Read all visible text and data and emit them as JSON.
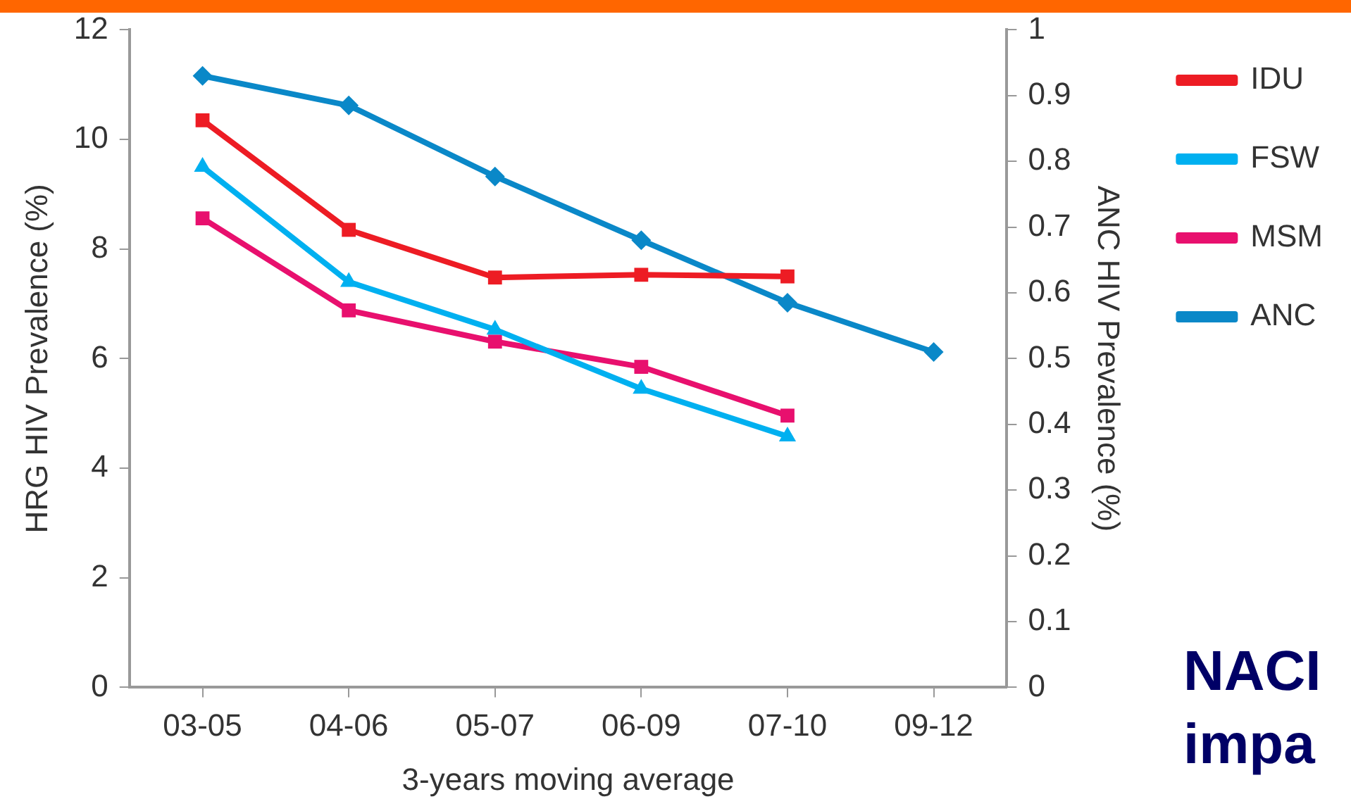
{
  "chart_data": {
    "type": "line",
    "xlabel": "3-years moving average",
    "ylabel": "HRG HIV Prevalence (%)",
    "y2label": "ANC HIV Prevalence (%)",
    "categories": [
      "03-05",
      "04-06",
      "05-07",
      "06-09",
      "07-10",
      "09-12"
    ],
    "series": [
      {
        "name": "IDU",
        "color": "#ed1c24",
        "marker": "square",
        "values": [
          10.35,
          8.35,
          7.48,
          7.53,
          7.5,
          null
        ]
      },
      {
        "name": "FSW",
        "color": "#00b0f0",
        "marker": "triangle",
        "values": [
          9.5,
          7.4,
          6.53,
          5.45,
          4.58,
          null
        ]
      },
      {
        "name": "MSM",
        "color": "#e8106e",
        "marker": "square",
        "values": [
          8.56,
          6.88,
          6.31,
          5.85,
          4.96,
          null
        ]
      },
      {
        "name": "ANC",
        "color": "#0a88c8",
        "marker": "diamond",
        "axis": "y2",
        "values": [
          0.93,
          0.885,
          0.777,
          0.68,
          0.585,
          0.51
        ]
      }
    ],
    "ylim": [
      0,
      12
    ],
    "yticks": [
      0,
      2,
      4,
      6,
      8,
      10,
      12
    ],
    "y2lim": [
      0,
      1
    ],
    "y2ticks": [
      0,
      0.1,
      0.2,
      0.3,
      0.4,
      0.5,
      0.6,
      0.7,
      0.8,
      0.9,
      1
    ],
    "grid": false,
    "legend": "right",
    "line_style": "solid",
    "annotations": [
      "NACI",
      "impa"
    ]
  }
}
